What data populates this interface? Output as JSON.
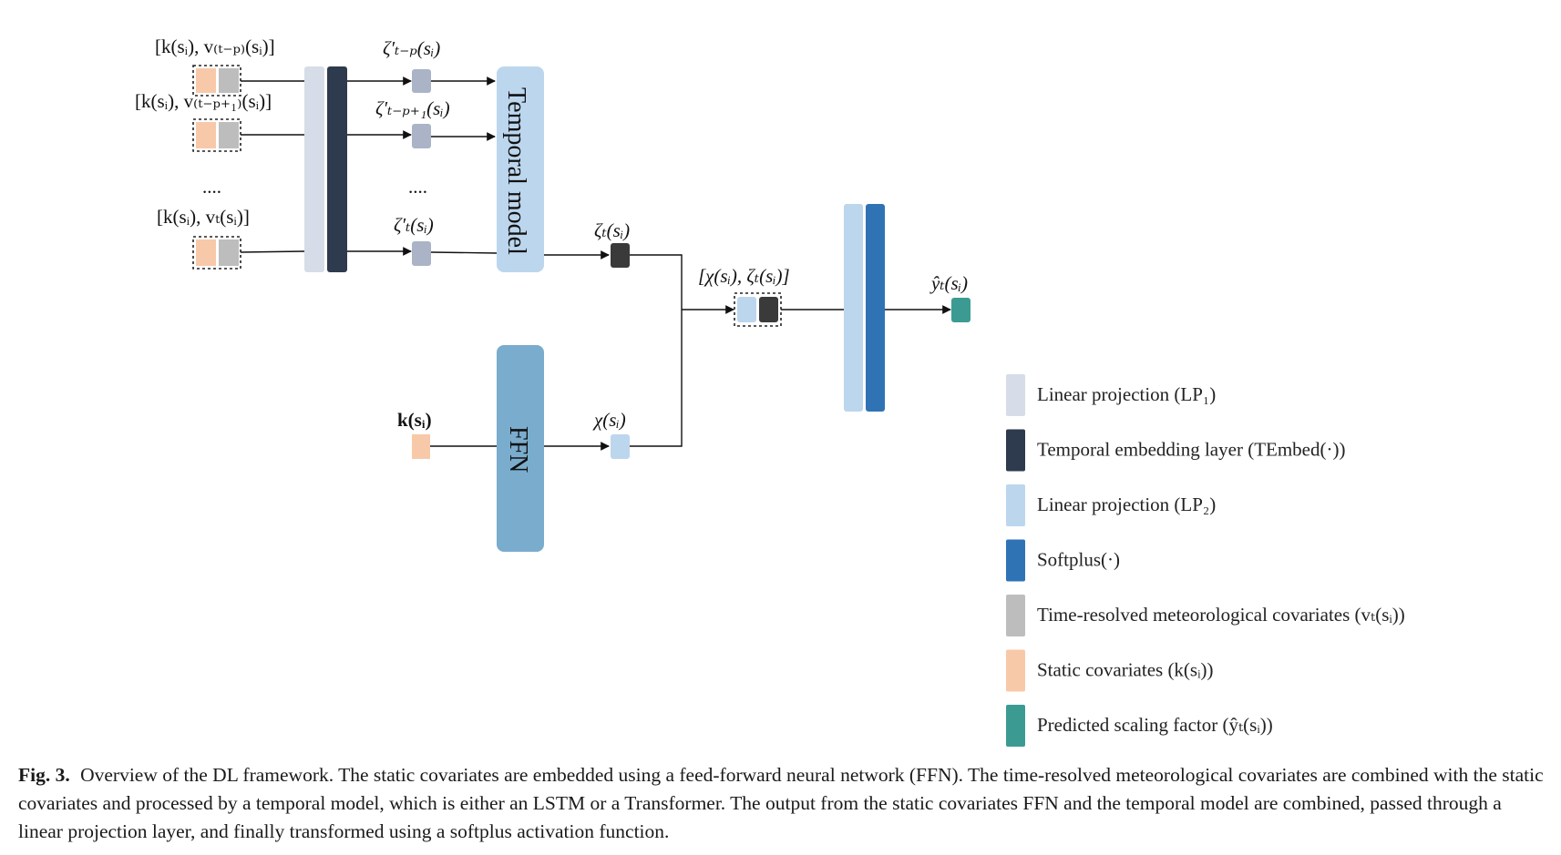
{
  "inputs": {
    "row1": {
      "label": "[k(sᵢ), v₍ₜ₋ₚ₎(sᵢ)]"
    },
    "row2": {
      "label": "[k(sᵢ), v₍ₜ₋ₚ₊₁₎(sᵢ)]"
    },
    "row3": {
      "label": "[k(sᵢ), vₜ(sᵢ)]"
    },
    "dots": "...."
  },
  "embeddings": {
    "e1": "ζ′ₜ₋ₚ(sᵢ)",
    "e2": "ζ′ₜ₋ₚ₊₁(sᵢ)",
    "e3": "ζ′ₜ(sᵢ)",
    "dots": "...."
  },
  "blocks": {
    "temporal_model": "Temporal model",
    "ffn": "FFN"
  },
  "labels": {
    "zeta_t": "ζₜ(sᵢ)",
    "k_static": "k(sᵢ)",
    "chi": "χ(sᵢ)",
    "concat": "[χ(sᵢ), ζₜ(sᵢ)]",
    "y_hat": "ŷₜ(sᵢ)"
  },
  "colors": {
    "lp1": "#d6dde8",
    "tembed": "#2e3a4d",
    "lp2": "#bcd6ee",
    "softplus": "#2f73b5",
    "met_cov": "#bdbdbd",
    "static_cov": "#f8c9a9",
    "pred": "#3b9b93",
    "temporal_block": "#bcd6ee",
    "ffn_block": "#7aaccd",
    "embed_small": "#aab4c6",
    "zeta_dark": "#3a3a3a"
  },
  "legend": [
    {
      "swatch": "lp1",
      "text": "Linear projection (LP₁)"
    },
    {
      "swatch": "tembed",
      "text": "Temporal embedding layer (TEmbed(·))"
    },
    {
      "swatch": "lp2",
      "text": "Linear projection (LP₂)"
    },
    {
      "swatch": "softplus",
      "text": "Softplus(·)"
    },
    {
      "swatch": "met_cov",
      "text": "Time-resolved meteorological covariates (vₜ(sᵢ))"
    },
    {
      "swatch": "static_cov",
      "text": "Static covariates (k(sᵢ))"
    },
    {
      "swatch": "pred",
      "text": "Predicted scaling factor (ŷₜ(sᵢ))"
    }
  ],
  "caption": {
    "fig_label": "Fig. 3.",
    "text": "Overview of the DL framework. The static covariates are embedded using a feed-forward neural network (FFN). The time-resolved meteorological covariates are combined with the static covariates and processed by a temporal model, which is either an LSTM or a Transformer. The output from the static covariates FFN and the temporal model are combined, passed through a linear projection layer, and finally transformed using a softplus activation function."
  }
}
